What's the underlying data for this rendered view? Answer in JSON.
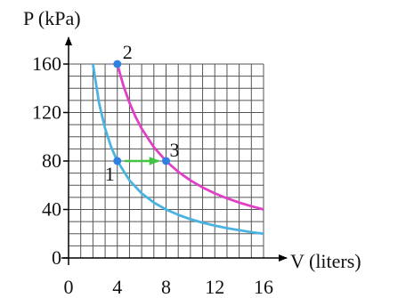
{
  "chart_data": {
    "type": "line",
    "xlabel": "V (liters)",
    "ylabel": "P (kPa)",
    "xlim": [
      0,
      16
    ],
    "ylim": [
      0,
      160
    ],
    "x_ticks": [
      "0",
      "4",
      "8",
      "12",
      "16"
    ],
    "y_ticks": [
      "0",
      "40",
      "80",
      "120",
      "160"
    ],
    "grid": true,
    "series": [
      {
        "color": "#4ab3e0",
        "x": [
          2,
          2.5,
          3,
          3.5,
          4,
          5,
          6,
          7,
          8,
          9,
          10,
          11,
          12,
          13,
          14,
          15,
          16
        ],
        "y": [
          160,
          128,
          106.7,
          91.4,
          80,
          64,
          53.3,
          45.7,
          40,
          35.6,
          32,
          29.1,
          26.7,
          24.6,
          22.9,
          21.3,
          20
        ]
      },
      {
        "color": "#e040c8",
        "x": [
          4,
          4.5,
          5,
          5.5,
          6,
          7,
          8,
          9,
          10,
          11,
          12,
          13,
          14,
          15,
          16
        ],
        "y": [
          160,
          142.2,
          128,
          116.4,
          106.7,
          91.4,
          80,
          71.1,
          64,
          58.2,
          53.3,
          49.2,
          45.7,
          42.7,
          40
        ]
      }
    ],
    "points": [
      {
        "label": "1",
        "x": 4,
        "y": 80
      },
      {
        "label": "2",
        "x": 4,
        "y": 160
      },
      {
        "label": "3",
        "x": 8,
        "y": 80
      }
    ],
    "arrow": {
      "from": [
        4,
        80
      ],
      "to": [
        8,
        80
      ],
      "color": "#44c444"
    },
    "point_color": "#2f80e0"
  }
}
